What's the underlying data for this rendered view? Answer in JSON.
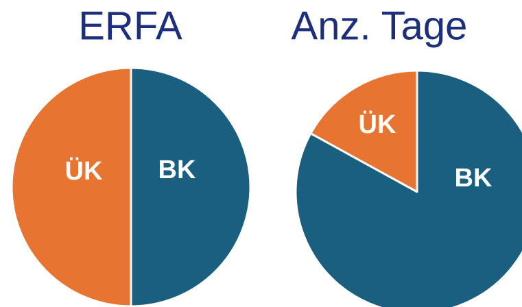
{
  "chart_data": [
    {
      "type": "pie",
      "title": "ERFA",
      "categories": [
        "ÜK",
        "BK"
      ],
      "values": [
        50,
        50
      ],
      "colors": [
        "#e87432",
        "#1a5e80"
      ]
    },
    {
      "type": "pie",
      "title": "Anz. Tage",
      "categories": [
        "ÜK",
        "BK"
      ],
      "values": [
        17,
        83
      ],
      "colors": [
        "#e87432",
        "#1a5e80"
      ]
    }
  ]
}
